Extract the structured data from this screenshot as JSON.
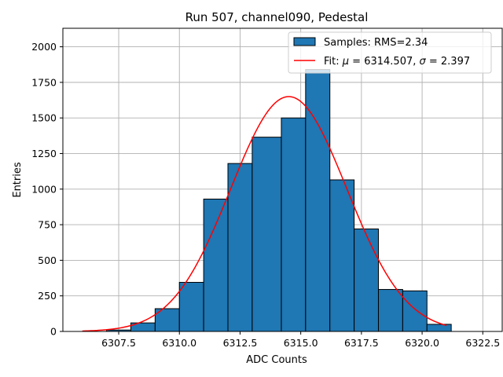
{
  "chart_data": {
    "type": "bar",
    "title": "Run 507, channel090, Pedestal",
    "xlabel": "ADC Counts",
    "ylabel": "Entries",
    "xlim": [
      6305.2,
      6323.3
    ],
    "ylim": [
      0,
      2130
    ],
    "grid": true,
    "legend_position": "top-right",
    "xticks": [
      6307.5,
      6310.0,
      6312.5,
      6315.0,
      6317.5,
      6320.0,
      6322.5
    ],
    "xtick_labels": [
      "6307.5",
      "6310.0",
      "6312.5",
      "6315.0",
      "6317.5",
      "6320.0",
      "6322.5"
    ],
    "yticks": [
      0,
      250,
      500,
      750,
      1000,
      1250,
      1500,
      1750,
      2000
    ],
    "ytick_labels": [
      "0",
      "250",
      "500",
      "750",
      "1000",
      "1250",
      "1500",
      "1750",
      "2000"
    ],
    "bins": [
      {
        "x0": 6307.0,
        "x1": 6308.0,
        "count": 10
      },
      {
        "x0": 6308.0,
        "x1": 6309.0,
        "count": 60
      },
      {
        "x0": 6309.0,
        "x1": 6310.0,
        "count": 160
      },
      {
        "x0": 6310.0,
        "x1": 6311.0,
        "count": 345
      },
      {
        "x0": 6311.0,
        "x1": 6312.0,
        "count": 930
      },
      {
        "x0": 6312.0,
        "x1": 6313.0,
        "count": 1180
      },
      {
        "x0": 6313.0,
        "x1": 6314.2,
        "count": 1365
      },
      {
        "x0": 6314.2,
        "x1": 6315.2,
        "count": 1500
      },
      {
        "x0": 6315.2,
        "x1": 6316.2,
        "count": 1840
      },
      {
        "x0": 6316.2,
        "x1": 6317.2,
        "count": 1065
      },
      {
        "x0": 6317.2,
        "x1": 6318.2,
        "count": 720
      },
      {
        "x0": 6318.2,
        "x1": 6319.2,
        "count": 295
      },
      {
        "x0": 6319.2,
        "x1": 6320.2,
        "count": 285
      },
      {
        "x0": 6320.2,
        "x1": 6321.2,
        "count": 50
      }
    ],
    "fit": {
      "mu": 6314.507,
      "sigma": 2.397,
      "amplitude": 1650,
      "x_range": [
        6306.0,
        6321.0
      ]
    },
    "series": [
      {
        "name": "Samples: RMS=2.34",
        "kind": "histogram",
        "color": "#1f77b4"
      },
      {
        "name": "Fit: μ = 6314.507, σ = 2.397",
        "kind": "line",
        "color": "#ff0000"
      }
    ]
  },
  "legend": {
    "samples_label": "Samples: RMS=2.34",
    "fit_prefix": "Fit: ",
    "mu_symbol": "μ",
    "mu_value": " = 6314.507, ",
    "sigma_symbol": "σ",
    "sigma_value": " = 2.397"
  }
}
